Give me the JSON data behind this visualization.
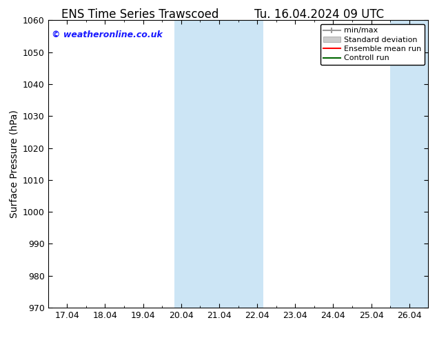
{
  "title_left": "ENS Time Series Trawscoed",
  "title_right": "Tu. 16.04.2024 09 UTC",
  "ylabel": "Surface Pressure (hPa)",
  "ylim": [
    970,
    1060
  ],
  "yticks": [
    970,
    980,
    990,
    1000,
    1010,
    1020,
    1030,
    1040,
    1050,
    1060
  ],
  "xlim": [
    16.5,
    26.5
  ],
  "xtick_labels": [
    "17.04",
    "18.04",
    "19.04",
    "20.04",
    "21.04",
    "22.04",
    "23.04",
    "24.04",
    "25.04",
    "26.04"
  ],
  "xtick_positions": [
    17,
    18,
    19,
    20,
    21,
    22,
    23,
    24,
    25,
    26
  ],
  "shade_regions": [
    {
      "x_start": 19.5,
      "x_end": 20.5
    },
    {
      "x_start": 21.0,
      "x_end": 22.5
    },
    {
      "x_start": 25.5,
      "x_end": 26.0
    },
    {
      "x_start": 26.0,
      "x_end": 26.5
    }
  ],
  "shade_regions2": [
    {
      "x_start": 19.83,
      "x_end": 22.17
    },
    {
      "x_start": 25.5,
      "x_end": 26.5
    }
  ],
  "shade_color": "#cce5f5",
  "watermark": "© weatheronline.co.uk",
  "watermark_color": "#1a1aff",
  "legend_labels": [
    "min/max",
    "Standard deviation",
    "Ensemble mean run",
    "Controll run"
  ],
  "legend_line_colors": [
    "#999999",
    "#cccccc",
    "#ff0000",
    "#006600"
  ],
  "background_color": "#ffffff",
  "title_fontsize": 12,
  "axis_label_fontsize": 10,
  "tick_fontsize": 9,
  "legend_fontsize": 8
}
